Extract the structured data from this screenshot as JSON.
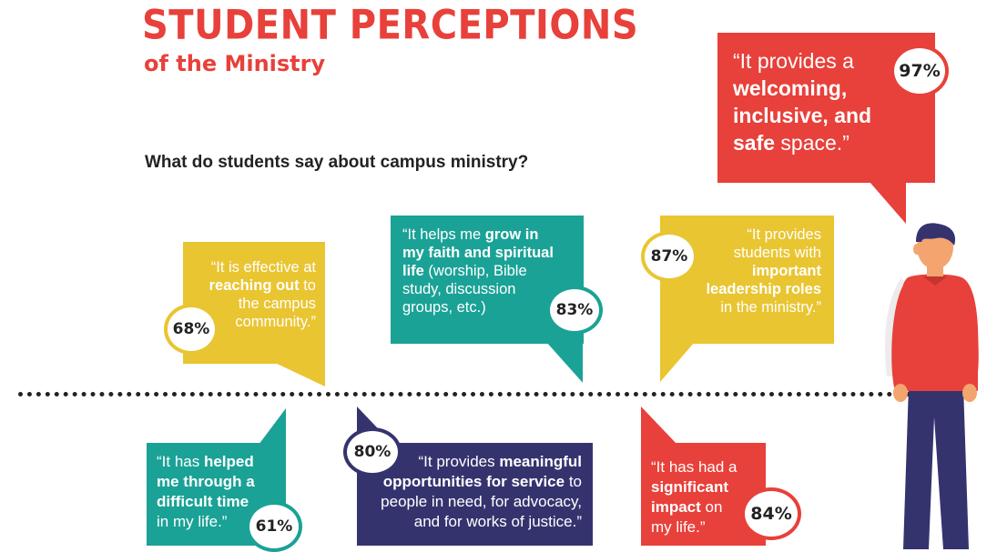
{
  "header": {
    "title": "STUDENT PERCEPTIONS",
    "subtitle": "of the Ministry",
    "question": "What do students say about campus ministry?"
  },
  "colors": {
    "red": "#e8403a",
    "yellow": "#e9c531",
    "teal": "#1aa296",
    "navy": "#35336e",
    "text_dark": "#222222"
  },
  "bubbles": [
    {
      "id": "welcoming",
      "percent": "97%",
      "color": "red",
      "lines": [
        [
          "“It provides a"
        ],
        [
          "",
          "welcoming,"
        ],
        [
          "",
          "inclusive, and"
        ],
        [
          "",
          "safe",
          " space.”"
        ]
      ]
    },
    {
      "id": "reaching",
      "percent": "68%",
      "color": "yellow",
      "lines": [
        [
          "“It is effective at"
        ],
        [
          "",
          "reaching out",
          " to"
        ],
        [
          "the campus"
        ],
        [
          "community.”"
        ]
      ]
    },
    {
      "id": "grow",
      "percent": "83%",
      "color": "teal",
      "lines": [
        [
          "“It helps me ",
          "grow in"
        ],
        [
          "",
          "my faith and spiritual"
        ],
        [
          "",
          "life",
          " (worship, Bible"
        ],
        [
          "study, discussion"
        ],
        [
          "groups, etc.)"
        ]
      ]
    },
    {
      "id": "leadership",
      "percent": "87%",
      "color": "yellow",
      "lines": [
        [
          "“It provides"
        ],
        [
          "students with"
        ],
        [
          "",
          "important"
        ],
        [
          "",
          "leadership roles"
        ],
        [
          "in the ministry.”"
        ]
      ]
    },
    {
      "id": "difficult",
      "percent": "61%",
      "color": "teal",
      "lines": [
        [
          "“It has ",
          "helped"
        ],
        [
          "",
          "me through a"
        ],
        [
          "",
          "difficult time"
        ],
        [
          "in my life.”"
        ]
      ]
    },
    {
      "id": "service",
      "percent": "80%",
      "color": "navy",
      "lines": [
        [
          "“It provides ",
          "meaningful"
        ],
        [
          "",
          "opportunities for service",
          " to"
        ],
        [
          "people in need, for advocacy,"
        ],
        [
          "and for works of justice.”"
        ]
      ]
    },
    {
      "id": "impact",
      "percent": "84%",
      "color": "red",
      "lines": [
        [
          "“It has had a"
        ],
        [
          "",
          "significant"
        ],
        [
          "",
          "impact",
          " on"
        ],
        [
          "my life.”"
        ]
      ]
    }
  ]
}
